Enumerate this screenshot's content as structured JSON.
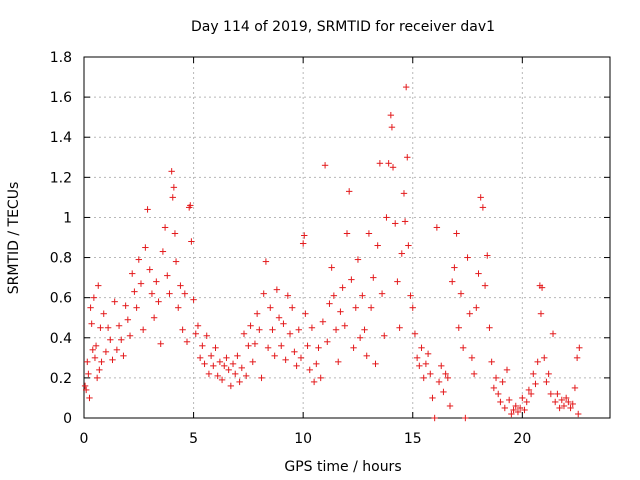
{
  "chart_data": {
    "type": "scatter",
    "title": "Day 114 of 2019, SRMTID for receiver dav1",
    "xlabel": "GPS time / hours",
    "ylabel": "SRMTID / TECUs",
    "xlim": [
      0,
      24
    ],
    "ylim": [
      0,
      1.8
    ],
    "xticks": [
      0,
      5,
      10,
      15,
      20
    ],
    "yticks": [
      0,
      0.2,
      0.4,
      0.6,
      0.8,
      1.0,
      1.2,
      1.4,
      1.6,
      1.8
    ],
    "xtick_labels": [
      "0",
      "5",
      "10",
      "15",
      "20"
    ],
    "ytick_labels": [
      "0",
      "0.2",
      "0.4",
      "0.6",
      "0.8",
      "1",
      "1.2",
      "1.4",
      "1.6",
      "1.8"
    ],
    "grid": true,
    "marker": "+",
    "series_color": "#e31a1c",
    "series": [
      {
        "name": "SRMTID dav1",
        "points": [
          [
            0.05,
            0.16
          ],
          [
            0.1,
            0.14
          ],
          [
            0.15,
            0.28
          ],
          [
            0.2,
            0.22
          ],
          [
            0.25,
            0.1
          ],
          [
            0.3,
            0.55
          ],
          [
            0.35,
            0.47
          ],
          [
            0.4,
            0.34
          ],
          [
            0.45,
            0.6
          ],
          [
            0.5,
            0.3
          ],
          [
            0.55,
            0.36
          ],
          [
            0.6,
            0.2
          ],
          [
            0.65,
            0.66
          ],
          [
            0.7,
            0.24
          ],
          [
            0.75,
            0.45
          ],
          [
            0.8,
            0.28
          ],
          [
            0.9,
            0.52
          ],
          [
            1.0,
            0.33
          ],
          [
            1.1,
            0.45
          ],
          [
            1.2,
            0.39
          ],
          [
            1.3,
            0.29
          ],
          [
            1.4,
            0.58
          ],
          [
            1.5,
            0.34
          ],
          [
            1.6,
            0.46
          ],
          [
            1.7,
            0.39
          ],
          [
            1.8,
            0.31
          ],
          [
            1.9,
            0.56
          ],
          [
            2.0,
            0.49
          ],
          [
            2.1,
            0.41
          ],
          [
            2.2,
            0.72
          ],
          [
            2.3,
            0.63
          ],
          [
            2.4,
            0.55
          ],
          [
            2.5,
            0.79
          ],
          [
            2.6,
            0.67
          ],
          [
            2.7,
            0.44
          ],
          [
            2.8,
            0.85
          ],
          [
            2.9,
            1.04
          ],
          [
            3.0,
            0.74
          ],
          [
            3.1,
            0.62
          ],
          [
            3.2,
            0.5
          ],
          [
            3.3,
            0.68
          ],
          [
            3.4,
            0.58
          ],
          [
            3.5,
            0.37
          ],
          [
            3.6,
            0.83
          ],
          [
            3.7,
            0.95
          ],
          [
            3.8,
            0.71
          ],
          [
            3.9,
            0.62
          ],
          [
            4.0,
            1.23
          ],
          [
            4.05,
            1.1
          ],
          [
            4.1,
            1.15
          ],
          [
            4.15,
            0.92
          ],
          [
            4.2,
            0.78
          ],
          [
            4.3,
            0.55
          ],
          [
            4.4,
            0.66
          ],
          [
            4.5,
            0.44
          ],
          [
            4.6,
            0.62
          ],
          [
            4.7,
            0.38
          ],
          [
            4.8,
            1.05
          ],
          [
            4.85,
            1.06
          ],
          [
            4.9,
            0.88
          ],
          [
            5.0,
            0.59
          ],
          [
            5.1,
            0.42
          ],
          [
            5.2,
            0.46
          ],
          [
            5.3,
            0.3
          ],
          [
            5.4,
            0.36
          ],
          [
            5.5,
            0.27
          ],
          [
            5.6,
            0.41
          ],
          [
            5.7,
            0.22
          ],
          [
            5.8,
            0.31
          ],
          [
            5.9,
            0.26
          ],
          [
            6.0,
            0.35
          ],
          [
            6.1,
            0.21
          ],
          [
            6.2,
            0.28
          ],
          [
            6.3,
            0.19
          ],
          [
            6.4,
            0.26
          ],
          [
            6.5,
            0.3
          ],
          [
            6.6,
            0.24
          ],
          [
            6.7,
            0.16
          ],
          [
            6.8,
            0.27
          ],
          [
            6.9,
            0.22
          ],
          [
            7.0,
            0.31
          ],
          [
            7.1,
            0.18
          ],
          [
            7.2,
            0.25
          ],
          [
            7.3,
            0.42
          ],
          [
            7.4,
            0.21
          ],
          [
            7.5,
            0.36
          ],
          [
            7.6,
            0.46
          ],
          [
            7.7,
            0.28
          ],
          [
            7.8,
            0.37
          ],
          [
            7.9,
            0.52
          ],
          [
            8.0,
            0.44
          ],
          [
            8.1,
            0.2
          ],
          [
            8.2,
            0.62
          ],
          [
            8.3,
            0.78
          ],
          [
            8.4,
            0.35
          ],
          [
            8.5,
            0.55
          ],
          [
            8.6,
            0.44
          ],
          [
            8.7,
            0.31
          ],
          [
            8.8,
            0.64
          ],
          [
            8.9,
            0.5
          ],
          [
            9.0,
            0.36
          ],
          [
            9.1,
            0.47
          ],
          [
            9.2,
            0.29
          ],
          [
            9.3,
            0.61
          ],
          [
            9.4,
            0.42
          ],
          [
            9.5,
            0.55
          ],
          [
            9.6,
            0.33
          ],
          [
            9.7,
            0.26
          ],
          [
            9.8,
            0.44
          ],
          [
            9.9,
            0.3
          ],
          [
            10.0,
            0.87
          ],
          [
            10.05,
            0.91
          ],
          [
            10.1,
            0.52
          ],
          [
            10.2,
            0.36
          ],
          [
            10.3,
            0.24
          ],
          [
            10.4,
            0.45
          ],
          [
            10.5,
            0.18
          ],
          [
            10.6,
            0.27
          ],
          [
            10.7,
            0.35
          ],
          [
            10.8,
            0.2
          ],
          [
            10.9,
            0.48
          ],
          [
            11.0,
            1.26
          ],
          [
            11.1,
            0.38
          ],
          [
            11.2,
            0.57
          ],
          [
            11.3,
            0.75
          ],
          [
            11.4,
            0.61
          ],
          [
            11.5,
            0.44
          ],
          [
            11.6,
            0.28
          ],
          [
            11.7,
            0.53
          ],
          [
            11.8,
            0.65
          ],
          [
            11.9,
            0.46
          ],
          [
            12.0,
            0.92
          ],
          [
            12.1,
            1.13
          ],
          [
            12.2,
            0.69
          ],
          [
            12.3,
            0.35
          ],
          [
            12.4,
            0.55
          ],
          [
            12.5,
            0.79
          ],
          [
            12.6,
            0.4
          ],
          [
            12.7,
            0.61
          ],
          [
            12.8,
            0.44
          ],
          [
            12.9,
            0.31
          ],
          [
            13.0,
            0.92
          ],
          [
            13.1,
            0.55
          ],
          [
            13.2,
            0.7
          ],
          [
            13.3,
            0.27
          ],
          [
            13.4,
            0.86
          ],
          [
            13.5,
            1.27
          ],
          [
            13.6,
            0.62
          ],
          [
            13.7,
            0.41
          ],
          [
            13.8,
            1.0
          ],
          [
            13.9,
            1.27
          ],
          [
            14.0,
            1.51
          ],
          [
            14.05,
            1.45
          ],
          [
            14.1,
            1.25
          ],
          [
            14.2,
            0.97
          ],
          [
            14.3,
            0.68
          ],
          [
            14.4,
            0.45
          ],
          [
            14.5,
            0.82
          ],
          [
            14.6,
            1.12
          ],
          [
            14.65,
            0.98
          ],
          [
            14.7,
            1.65
          ],
          [
            14.75,
            1.3
          ],
          [
            14.8,
            0.86
          ],
          [
            14.9,
            0.61
          ],
          [
            15.0,
            0.55
          ],
          [
            15.1,
            0.42
          ],
          [
            15.2,
            0.3
          ],
          [
            15.3,
            0.26
          ],
          [
            15.4,
            0.35
          ],
          [
            15.5,
            0.2
          ],
          [
            15.6,
            0.27
          ],
          [
            15.7,
            0.32
          ],
          [
            15.8,
            0.22
          ],
          [
            15.9,
            0.1
          ],
          [
            16.0,
            0.0
          ],
          [
            16.1,
            0.95
          ],
          [
            16.2,
            0.18
          ],
          [
            16.3,
            0.26
          ],
          [
            16.4,
            0.13
          ],
          [
            16.5,
            0.22
          ],
          [
            16.6,
            0.2
          ],
          [
            16.7,
            0.06
          ],
          [
            16.8,
            0.68
          ],
          [
            16.9,
            0.75
          ],
          [
            17.0,
            0.92
          ],
          [
            17.1,
            0.45
          ],
          [
            17.2,
            0.62
          ],
          [
            17.3,
            0.35
          ],
          [
            17.4,
            0.0
          ],
          [
            17.5,
            0.8
          ],
          [
            17.6,
            0.52
          ],
          [
            17.7,
            0.3
          ],
          [
            17.8,
            0.22
          ],
          [
            17.9,
            0.55
          ],
          [
            18.0,
            0.72
          ],
          [
            18.1,
            1.1
          ],
          [
            18.2,
            1.05
          ],
          [
            18.3,
            0.66
          ],
          [
            18.4,
            0.81
          ],
          [
            18.5,
            0.45
          ],
          [
            18.6,
            0.28
          ],
          [
            18.7,
            0.15
          ],
          [
            18.8,
            0.2
          ],
          [
            18.9,
            0.12
          ],
          [
            19.0,
            0.08
          ],
          [
            19.1,
            0.18
          ],
          [
            19.2,
            0.05
          ],
          [
            19.3,
            0.24
          ],
          [
            19.4,
            0.09
          ],
          [
            19.5,
            0.02
          ],
          [
            19.6,
            0.04
          ],
          [
            19.7,
            0.06
          ],
          [
            19.8,
            0.03
          ],
          [
            19.9,
            0.05
          ],
          [
            20.0,
            0.1
          ],
          [
            20.1,
            0.04
          ],
          [
            20.2,
            0.08
          ],
          [
            20.3,
            0.14
          ],
          [
            20.4,
            0.12
          ],
          [
            20.5,
            0.22
          ],
          [
            20.6,
            0.17
          ],
          [
            20.7,
            0.28
          ],
          [
            20.8,
            0.66
          ],
          [
            20.85,
            0.52
          ],
          [
            20.9,
            0.65
          ],
          [
            21.0,
            0.3
          ],
          [
            21.1,
            0.18
          ],
          [
            21.2,
            0.22
          ],
          [
            21.3,
            0.12
          ],
          [
            21.4,
            0.42
          ],
          [
            21.5,
            0.08
          ],
          [
            21.6,
            0.12
          ],
          [
            21.7,
            0.05
          ],
          [
            21.8,
            0.09
          ],
          [
            21.9,
            0.06
          ],
          [
            22.0,
            0.1
          ],
          [
            22.1,
            0.08
          ],
          [
            22.2,
            0.05
          ],
          [
            22.3,
            0.07
          ],
          [
            22.4,
            0.15
          ],
          [
            22.5,
            0.3
          ],
          [
            22.55,
            0.02
          ],
          [
            22.6,
            0.35
          ]
        ]
      }
    ]
  }
}
